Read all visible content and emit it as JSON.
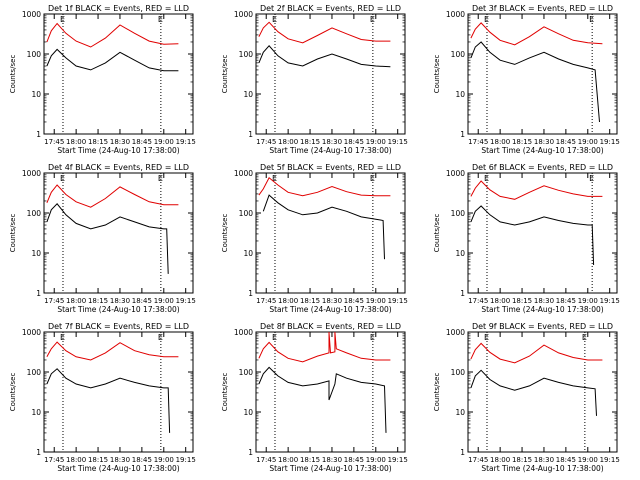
{
  "colors": {
    "events": "#000000",
    "lld": "#e00000",
    "frame": "#000000",
    "marker": "#000000"
  },
  "marker_labels": [
    "E",
    "E"
  ],
  "chart_data": [
    {
      "type": "line",
      "title": "Det 1f BLACK = Events, RED = LLD",
      "xlabel": "Start Time (24-Aug-10 17:38:00)",
      "ylabel": "Counts/sec",
      "x_ticks": [
        "17:45",
        "18:00",
        "18:15",
        "18:30",
        "18:45",
        "19:00",
        "19:15"
      ],
      "y_ticks": [
        "1",
        "10",
        "100",
        "1000"
      ],
      "ylim": [
        1,
        1000
      ],
      "yscale": "log",
      "marker_times": [
        "17:51",
        "18:58"
      ],
      "series": [
        {
          "name": "LLD",
          "x": [
            "17:40",
            "17:43",
            "17:47",
            "17:53",
            "18:00",
            "18:10",
            "18:20",
            "18:30",
            "18:40",
            "18:50",
            "19:00",
            "19:10"
          ],
          "y": [
            200,
            380,
            580,
            330,
            210,
            150,
            250,
            530,
            330,
            210,
            175,
            180
          ]
        },
        {
          "name": "Events",
          "x": [
            "17:40",
            "17:43",
            "17:47",
            "17:53",
            "18:00",
            "18:10",
            "18:20",
            "18:30",
            "18:40",
            "18:50",
            "19:00",
            "19:10"
          ],
          "y": [
            50,
            90,
            130,
            80,
            50,
            40,
            60,
            110,
            70,
            45,
            38,
            38
          ]
        }
      ]
    },
    {
      "type": "line",
      "title": "Det 2f BLACK = Events, RED = LLD",
      "xlabel": "Start Time (24-Aug-10 17:38:00)",
      "ylabel": "Counts/sec",
      "x_ticks": [
        "17:45",
        "18:00",
        "18:15",
        "18:30",
        "18:45",
        "19:00",
        "19:15"
      ],
      "y_ticks": [
        "1",
        "10",
        "100",
        "1000"
      ],
      "ylim": [
        1,
        1000
      ],
      "yscale": "log",
      "marker_times": [
        "17:51",
        "18:58"
      ],
      "series": [
        {
          "name": "LLD",
          "x": [
            "17:40",
            "17:43",
            "17:47",
            "17:53",
            "18:00",
            "18:10",
            "18:20",
            "18:30",
            "18:40",
            "18:50",
            "19:00",
            "19:10"
          ],
          "y": [
            270,
            450,
            620,
            360,
            240,
            190,
            290,
            450,
            320,
            230,
            210,
            210
          ]
        },
        {
          "name": "Events",
          "x": [
            "17:40",
            "17:43",
            "17:47",
            "17:53",
            "18:00",
            "18:10",
            "18:20",
            "18:30",
            "18:40",
            "18:50",
            "19:00",
            "19:10"
          ],
          "y": [
            60,
            110,
            160,
            90,
            60,
            50,
            75,
            100,
            75,
            55,
            50,
            48
          ]
        }
      ]
    },
    {
      "type": "line",
      "title": "Det 3f BLACK = Events, RED = LLD",
      "xlabel": "Start Time (24-Aug-10 17:38:00)",
      "ylabel": "Counts/sec",
      "x_ticks": [
        "17:45",
        "18:00",
        "18:15",
        "18:30",
        "18:45",
        "19:00",
        "19:15"
      ],
      "y_ticks": [
        "1",
        "10",
        "100",
        "1000"
      ],
      "ylim": [
        1,
        1000
      ],
      "yscale": "log",
      "marker_times": [
        "17:51",
        "19:03"
      ],
      "series": [
        {
          "name": "LLD",
          "x": [
            "17:40",
            "17:43",
            "17:47",
            "17:53",
            "18:00",
            "18:10",
            "18:20",
            "18:30",
            "18:40",
            "18:50",
            "19:00",
            "19:10"
          ],
          "y": [
            250,
            420,
            600,
            350,
            220,
            170,
            270,
            480,
            320,
            220,
            190,
            180
          ]
        },
        {
          "name": "Events",
          "x": [
            "17:40",
            "17:43",
            "17:47",
            "17:53",
            "18:00",
            "18:10",
            "18:20",
            "18:30",
            "18:40",
            "18:50",
            "19:00",
            "19:05",
            "19:08"
          ],
          "y": [
            80,
            150,
            200,
            110,
            70,
            55,
            80,
            110,
            75,
            55,
            45,
            40,
            2
          ]
        }
      ]
    },
    {
      "type": "line",
      "title": "Det 4f BLACK = Events, RED = LLD",
      "xlabel": "Start Time (24-Aug-10 17:38:00)",
      "ylabel": "Counts/sec",
      "x_ticks": [
        "17:45",
        "18:00",
        "18:15",
        "18:30",
        "18:45",
        "19:00",
        "19:15"
      ],
      "y_ticks": [
        "1",
        "10",
        "100",
        "1000"
      ],
      "ylim": [
        1,
        1000
      ],
      "yscale": "log",
      "marker_times": [
        "17:51",
        "18:58"
      ],
      "series": [
        {
          "name": "LLD",
          "x": [
            "17:40",
            "17:43",
            "17:47",
            "17:53",
            "18:00",
            "18:10",
            "18:20",
            "18:30",
            "18:40",
            "18:50",
            "19:00",
            "19:10"
          ],
          "y": [
            180,
            330,
            500,
            290,
            190,
            140,
            230,
            450,
            290,
            190,
            160,
            160
          ]
        },
        {
          "name": "Events",
          "x": [
            "17:40",
            "17:43",
            "17:47",
            "17:53",
            "18:00",
            "18:10",
            "18:20",
            "18:30",
            "18:40",
            "18:50",
            "19:00",
            "19:02",
            "19:03"
          ],
          "y": [
            60,
            120,
            170,
            90,
            55,
            40,
            50,
            80,
            60,
            45,
            40,
            40,
            3
          ]
        }
      ]
    },
    {
      "type": "line",
      "title": "Det 5f BLACK = Events, RED = LLD",
      "xlabel": "Start Time (24-Aug-10 17:38:00)",
      "ylabel": "Counts/sec",
      "x_ticks": [
        "17:45",
        "18:00",
        "18:15",
        "18:30",
        "18:45",
        "19:00",
        "19:15"
      ],
      "y_ticks": [
        "1",
        "10",
        "100",
        "1000"
      ],
      "ylim": [
        1,
        1000
      ],
      "yscale": "log",
      "marker_times": [
        "17:51",
        "18:58"
      ],
      "series": [
        {
          "name": "LLD",
          "x": [
            "17:40",
            "17:43",
            "17:47",
            "17:53",
            "18:00",
            "18:10",
            "18:20",
            "18:30",
            "18:40",
            "18:50",
            "19:00",
            "19:10"
          ],
          "y": [
            280,
            400,
            760,
            500,
            330,
            270,
            330,
            460,
            340,
            280,
            270,
            270
          ]
        },
        {
          "name": "Events",
          "x": [
            "17:43",
            "17:47",
            "17:53",
            "18:00",
            "18:10",
            "18:20",
            "18:30",
            "18:40",
            "18:50",
            "19:00",
            "19:05",
            "19:06"
          ],
          "y": [
            110,
            280,
            180,
            120,
            90,
            100,
            140,
            110,
            80,
            70,
            65,
            7
          ]
        }
      ]
    },
    {
      "type": "line",
      "title": "Det 6f BLACK = Events, RED = LLD",
      "xlabel": "Start Time (24-Aug-10 17:38:00)",
      "ylabel": "Counts/sec",
      "x_ticks": [
        "17:45",
        "18:00",
        "18:15",
        "18:30",
        "18:45",
        "19:00",
        "19:15"
      ],
      "y_ticks": [
        "1",
        "10",
        "100",
        "1000"
      ],
      "ylim": [
        1,
        1000
      ],
      "yscale": "log",
      "marker_times": [
        "17:51",
        "19:03"
      ],
      "series": [
        {
          "name": "LLD",
          "x": [
            "17:40",
            "17:43",
            "17:47",
            "17:53",
            "18:00",
            "18:10",
            "18:20",
            "18:30",
            "18:40",
            "18:50",
            "19:00",
            "19:10"
          ],
          "y": [
            260,
            420,
            630,
            380,
            260,
            220,
            330,
            480,
            370,
            300,
            260,
            260
          ]
        },
        {
          "name": "Events",
          "x": [
            "17:40",
            "17:43",
            "17:47",
            "17:53",
            "18:00",
            "18:10",
            "18:20",
            "18:30",
            "18:40",
            "18:50",
            "19:00",
            "19:03",
            "19:04"
          ],
          "y": [
            60,
            110,
            150,
            90,
            60,
            50,
            60,
            80,
            65,
            55,
            50,
            50,
            5
          ]
        }
      ]
    },
    {
      "type": "line",
      "title": "Det 7f BLACK = Events, RED = LLD",
      "xlabel": "Start Time (24-Aug-10 17:38:00)",
      "ylabel": "Counts/sec",
      "x_ticks": [
        "17:45",
        "18:00",
        "18:15",
        "18:30",
        "18:45",
        "19:00",
        "19:15"
      ],
      "y_ticks": [
        "1",
        "10",
        "100",
        "1000"
      ],
      "ylim": [
        1,
        1000
      ],
      "yscale": "log",
      "marker_times": [
        "17:51",
        "18:58"
      ],
      "series": [
        {
          "name": "LLD",
          "x": [
            "17:40",
            "17:43",
            "17:47",
            "17:53",
            "18:00",
            "18:10",
            "18:20",
            "18:30",
            "18:40",
            "18:50",
            "19:00",
            "19:10"
          ],
          "y": [
            240,
            380,
            560,
            340,
            240,
            200,
            300,
            540,
            340,
            270,
            240,
            240
          ]
        },
        {
          "name": "Events",
          "x": [
            "17:40",
            "17:43",
            "17:47",
            "17:53",
            "18:00",
            "18:10",
            "18:20",
            "18:30",
            "18:40",
            "18:50",
            "19:00",
            "19:03",
            "19:04"
          ],
          "y": [
            50,
            90,
            120,
            70,
            50,
            40,
            50,
            70,
            55,
            45,
            40,
            40,
            3
          ]
        }
      ]
    },
    {
      "type": "line",
      "title": "Det 8f BLACK = Events, RED = LLD",
      "xlabel": "Start Time (24-Aug-10 17:38:00)",
      "ylabel": "Counts/sec",
      "x_ticks": [
        "17:45",
        "18:00",
        "18:15",
        "18:30",
        "18:45",
        "19:00",
        "19:15"
      ],
      "y_ticks": [
        "1",
        "10",
        "100",
        "1000"
      ],
      "ylim": [
        1,
        1000
      ],
      "yscale": "log",
      "marker_times": [
        "17:51",
        "18:58"
      ],
      "series": [
        {
          "name": "LLD",
          "x": [
            "17:40",
            "17:43",
            "17:47",
            "17:53",
            "18:00",
            "18:10",
            "18:20",
            "18:28",
            "18:28",
            "18:29",
            "18:32",
            "18:32",
            "18:33",
            "18:40",
            "18:50",
            "19:00",
            "19:10"
          ],
          "y": [
            220,
            380,
            550,
            320,
            220,
            180,
            250,
            300,
            1000,
            300,
            320,
            1000,
            380,
            300,
            220,
            200,
            200
          ]
        },
        {
          "name": "Events",
          "x": [
            "17:40",
            "17:43",
            "17:47",
            "17:53",
            "18:00",
            "18:10",
            "18:20",
            "18:28",
            "18:28",
            "18:32",
            "18:33",
            "18:40",
            "18:50",
            "19:00",
            "19:06",
            "19:07"
          ],
          "y": [
            50,
            90,
            130,
            80,
            55,
            45,
            50,
            60,
            20,
            50,
            90,
            70,
            55,
            50,
            45,
            3
          ]
        }
      ]
    },
    {
      "type": "line",
      "title": "Det 9f BLACK = Events, RED = LLD",
      "xlabel": "Start Time (24-Aug-10 17:38:00)",
      "ylabel": "Counts/sec",
      "x_ticks": [
        "17:45",
        "18:00",
        "18:15",
        "18:30",
        "18:45",
        "19:00",
        "19:15"
      ],
      "y_ticks": [
        "1",
        "10",
        "100",
        "1000"
      ],
      "ylim": [
        1,
        1000
      ],
      "yscale": "log",
      "marker_times": [
        "17:51",
        "18:58"
      ],
      "series": [
        {
          "name": "LLD",
          "x": [
            "17:40",
            "17:43",
            "17:47",
            "17:53",
            "18:00",
            "18:10",
            "18:20",
            "18:30",
            "18:40",
            "18:50",
            "19:00",
            "19:10"
          ],
          "y": [
            210,
            360,
            520,
            310,
            210,
            170,
            250,
            470,
            300,
            230,
            200,
            200
          ]
        },
        {
          "name": "Events",
          "x": [
            "17:40",
            "17:43",
            "17:47",
            "17:53",
            "18:00",
            "18:10",
            "18:20",
            "18:30",
            "18:40",
            "18:50",
            "19:00",
            "19:05",
            "19:06"
          ],
          "y": [
            40,
            80,
            110,
            65,
            45,
            35,
            45,
            70,
            55,
            45,
            40,
            38,
            8
          ]
        }
      ]
    }
  ]
}
